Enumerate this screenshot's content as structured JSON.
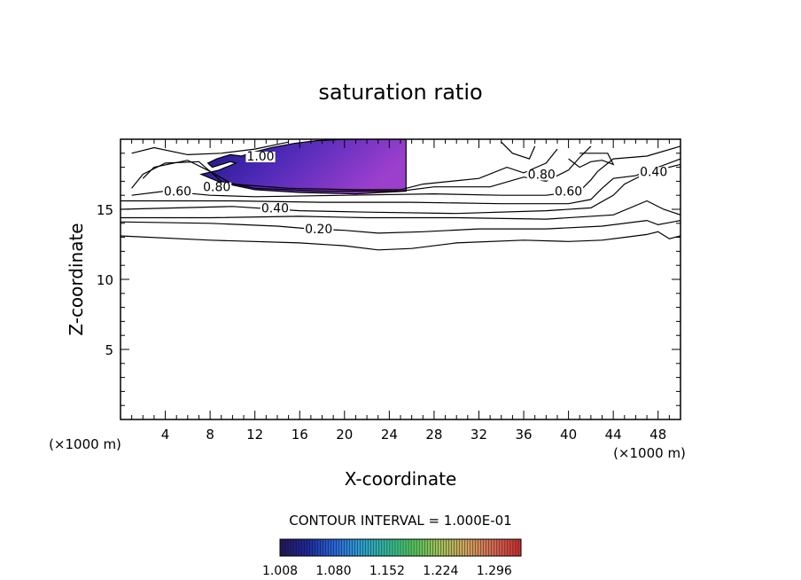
{
  "chart_data": {
    "type": "contour",
    "title": "saturation ratio",
    "xlabel": "X-coordinate",
    "ylabel": "Z-coordinate",
    "x_unit": "(×1000 m)",
    "y_unit": "(×1000 m)",
    "xlim": [
      0,
      50
    ],
    "ylim": [
      0,
      20
    ],
    "x_ticks": [
      "4",
      "8",
      "12",
      "16",
      "20",
      "24",
      "28",
      "32",
      "36",
      "40",
      "44",
      "48"
    ],
    "y_ticks": [
      "5",
      "10",
      "15"
    ],
    "contour_labels": [
      {
        "text": "1.00",
        "x": 12.5,
        "y": 18.8
      },
      {
        "text": "0.80",
        "x": 8.6,
        "y": 16.6
      },
      {
        "text": "0.60",
        "x": 5.1,
        "y": 16.3
      },
      {
        "text": "0.40",
        "x": 13.8,
        "y": 15.1
      },
      {
        "text": "0.20",
        "x": 17.7,
        "y": 13.6
      },
      {
        "text": "0.80",
        "x": 37.6,
        "y": 17.5
      },
      {
        "text": "0.60",
        "x": 40.0,
        "y": 16.3
      },
      {
        "text": "0.40",
        "x": 47.6,
        "y": 17.7
      }
    ],
    "contour_lines": [
      {
        "level": 0.1,
        "points": [
          [
            0,
            13.1
          ],
          [
            8,
            12.8
          ],
          [
            16,
            12.6
          ],
          [
            20,
            12.4
          ],
          [
            23,
            12.1
          ],
          [
            26,
            12.2
          ],
          [
            30,
            12.6
          ],
          [
            36,
            12.8
          ],
          [
            40,
            12.7
          ],
          [
            43,
            12.8
          ],
          [
            45,
            13.0
          ],
          [
            47,
            13.2
          ],
          [
            48,
            13.4
          ],
          [
            49,
            12.9
          ],
          [
            50,
            13.1
          ]
        ]
      },
      {
        "level": 0.2,
        "points": [
          [
            0,
            14.1
          ],
          [
            8,
            14.0
          ],
          [
            14,
            13.8
          ],
          [
            17,
            13.6
          ],
          [
            20,
            13.5
          ],
          [
            23,
            13.3
          ],
          [
            27,
            13.4
          ],
          [
            32,
            13.6
          ],
          [
            38,
            13.6
          ],
          [
            43,
            13.8
          ],
          [
            47,
            14.2
          ],
          [
            48,
            13.9
          ],
          [
            50,
            14.2
          ]
        ]
      },
      {
        "level": 0.3,
        "points": [
          [
            0,
            14.4
          ],
          [
            8,
            14.4
          ],
          [
            16,
            14.5
          ],
          [
            22,
            14.4
          ],
          [
            30,
            14.4
          ],
          [
            38,
            14.3
          ],
          [
            44,
            14.6
          ],
          [
            47,
            15.6
          ],
          [
            48.5,
            15.0
          ],
          [
            50,
            14.6
          ]
        ]
      },
      {
        "level": 0.4,
        "points": [
          [
            0,
            15.0
          ],
          [
            10,
            15.2
          ],
          [
            16,
            14.9
          ],
          [
            22,
            14.8
          ],
          [
            30,
            14.7
          ],
          [
            38,
            14.9
          ],
          [
            42,
            15.1
          ],
          [
            44,
            16.0
          ],
          [
            45,
            16.8
          ],
          [
            47,
            17.6
          ],
          [
            50,
            18.2
          ]
        ]
      },
      {
        "level": 0.5,
        "points": [
          [
            0,
            15.6
          ],
          [
            10,
            15.6
          ],
          [
            18,
            15.5
          ],
          [
            26,
            15.5
          ],
          [
            34,
            15.4
          ],
          [
            40,
            15.4
          ],
          [
            42,
            15.7
          ],
          [
            43,
            16.5
          ],
          [
            44,
            17.2
          ],
          [
            46,
            17.4
          ],
          [
            50,
            18.6
          ]
        ]
      },
      {
        "level": 0.6,
        "points": [
          [
            1,
            16.0
          ],
          [
            4,
            16.3
          ],
          [
            8,
            16.0
          ],
          [
            12,
            15.9
          ],
          [
            20,
            16.0
          ],
          [
            28,
            16.1
          ],
          [
            34,
            16.0
          ],
          [
            38,
            16.0
          ],
          [
            41,
            16.3
          ],
          [
            42,
            17.1
          ],
          [
            42.6,
            17.7
          ],
          [
            44,
            18.6
          ],
          [
            47,
            18.8
          ],
          [
            50,
            19.5
          ]
        ]
      },
      {
        "level": 0.7,
        "points": [
          [
            1,
            16.5
          ],
          [
            2,
            17.5
          ],
          [
            4,
            18.3
          ],
          [
            7,
            18.4
          ],
          [
            9,
            17.0
          ],
          [
            12,
            16.5
          ],
          [
            18,
            16.3
          ],
          [
            25,
            16.3
          ],
          [
            28,
            16.6
          ],
          [
            33,
            16.6
          ],
          [
            36,
            17.3
          ],
          [
            38,
            17.0
          ],
          [
            40,
            17.8
          ],
          [
            41,
            18.7
          ],
          [
            42,
            19.5
          ]
        ]
      },
      {
        "level": 0.8,
        "points": [
          [
            2,
            17.2
          ],
          [
            3,
            18.0
          ],
          [
            6,
            18.5
          ],
          [
            8,
            17.7
          ],
          [
            10,
            16.8
          ],
          [
            15,
            16.5
          ],
          [
            21,
            16.4
          ],
          [
            25,
            16.4
          ],
          [
            27,
            16.8
          ],
          [
            32,
            17.2
          ],
          [
            34.5,
            18.0
          ],
          [
            36,
            17.6
          ],
          [
            38,
            18.3
          ],
          [
            39,
            19.3
          ]
        ]
      },
      {
        "level": 0.9,
        "points": [
          [
            1,
            19.0
          ],
          [
            3,
            19.4
          ],
          [
            6,
            18.9
          ],
          [
            9,
            19.0
          ],
          [
            12,
            19.3
          ],
          [
            15,
            19.8
          ]
        ]
      },
      {
        "level": 0.9,
        "points": [
          [
            34,
            19.8
          ],
          [
            35,
            19.0
          ],
          [
            36.5,
            18.6
          ],
          [
            37,
            19.5
          ]
        ]
      },
      {
        "level": 0.7,
        "points": [
          [
            40,
            18.6
          ],
          [
            41,
            18.0
          ],
          [
            42,
            18.4
          ],
          [
            43,
            18.5
          ],
          [
            44,
            18.2
          ],
          [
            43.5,
            19.0
          ],
          [
            41,
            19.0
          ]
        ]
      }
    ],
    "shaded_region": {
      "level_min": 1.0,
      "outline": [
        [
          7.8,
          18.3
        ],
        [
          8.6,
          18.6
        ],
        [
          9.8,
          18.9
        ],
        [
          10.8,
          18.8
        ],
        [
          12,
          19.1
        ],
        [
          13.5,
          19.4
        ],
        [
          15.5,
          19.7
        ],
        [
          17.5,
          19.9
        ],
        [
          20,
          20
        ],
        [
          25.5,
          20
        ],
        [
          25.5,
          16.3
        ],
        [
          21,
          16.1
        ],
        [
          16,
          16.2
        ],
        [
          12,
          16.4
        ],
        [
          9,
          16.9
        ],
        [
          7.2,
          17.5
        ],
        [
          8.8,
          17.8
        ],
        [
          10.3,
          18.3
        ],
        [
          9.8,
          18.4
        ],
        [
          8.2,
          18.0
        ]
      ]
    },
    "colorbar": {
      "labels": [
        "1.008",
        "1.080",
        "1.152",
        "1.224",
        "1.296"
      ],
      "min": 1.008,
      "max": 1.332,
      "colors": [
        "#231a5a",
        "#1f2a9e",
        "#2a66d8",
        "#2f9fd0",
        "#33b89a",
        "#54c45e",
        "#a2c25a",
        "#cfa25c",
        "#d46a55",
        "#c83232"
      ]
    },
    "contour_interval_text": "CONTOUR INTERVAL = 1.000E-01",
    "grid": false
  }
}
